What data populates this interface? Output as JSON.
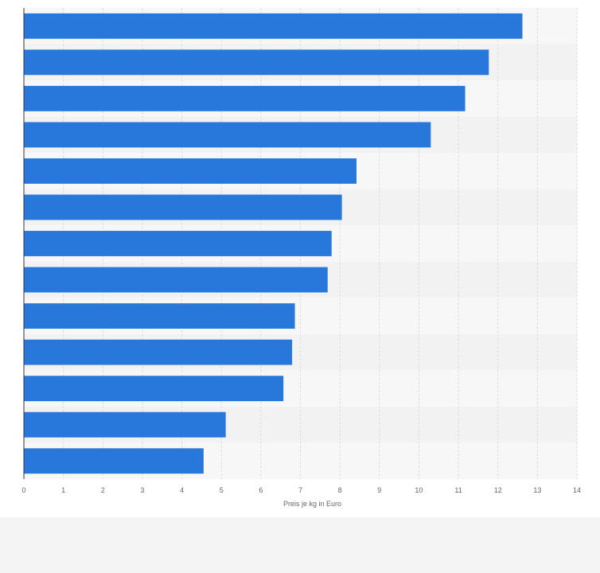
{
  "chart_data": {
    "type": "bar",
    "orientation": "horizontal",
    "title": "",
    "xlabel": "Preis je kg in Euro",
    "ylabel": "",
    "xlim": [
      0,
      14
    ],
    "x_ticks": [
      0,
      1,
      2,
      3,
      4,
      5,
      6,
      7,
      8,
      9,
      10,
      11,
      12,
      13,
      14
    ],
    "grid": true,
    "values": [
      12.62,
      11.77,
      11.17,
      10.3,
      8.42,
      8.05,
      7.79,
      7.69,
      6.86,
      6.79,
      6.57,
      5.11,
      4.55
    ],
    "colors": {
      "bar": "#2878dc",
      "grid": "#dddddd",
      "band_light": "#f7f7f7",
      "band_dark": "#f2f2f2",
      "axis": "#333333"
    }
  }
}
